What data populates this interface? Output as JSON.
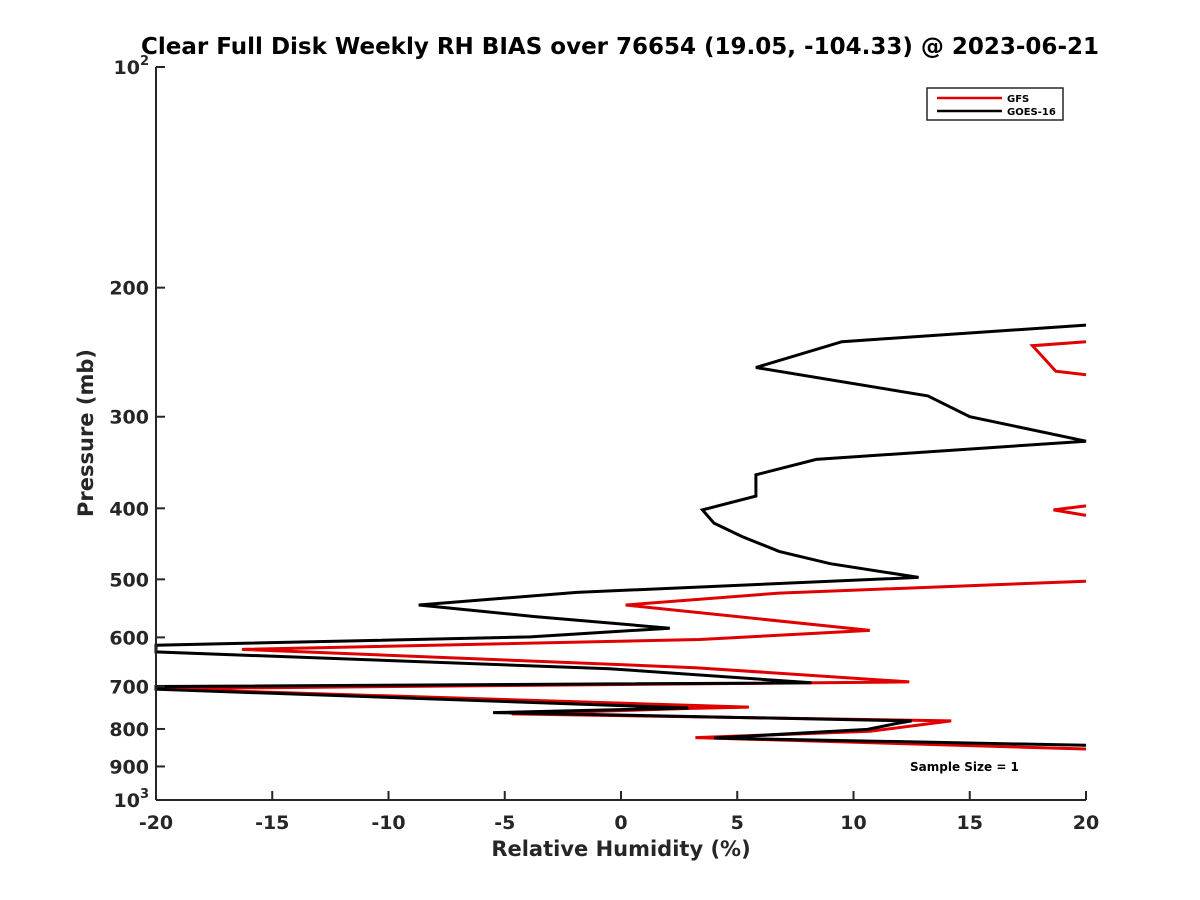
{
  "chart_data": {
    "type": "line",
    "title": "Clear Full Disk Weekly RH BIAS over 76654 (19.05, -104.33) @ 2023-06-21",
    "xlabel": "Relative Humidity (%)",
    "ylabel": "Pressure (mb)",
    "xlim": [
      -20,
      20
    ],
    "ylim": [
      100,
      1000
    ],
    "yscale": "log",
    "yreversed": true,
    "x_ticks": [
      -20,
      -15,
      -10,
      -5,
      0,
      5,
      10,
      15,
      20
    ],
    "x_tick_labels": [
      "-20",
      "-15",
      "-10",
      "-5",
      "0",
      "5",
      "10",
      "15",
      "20"
    ],
    "y_ticks": [
      100,
      200,
      300,
      400,
      500,
      600,
      700,
      800,
      900,
      1000
    ],
    "y_tick_labels": [
      {
        "base": "10",
        "sup": "2"
      },
      {
        "base": "200",
        "sup": ""
      },
      {
        "base": "300",
        "sup": ""
      },
      {
        "base": "400",
        "sup": ""
      },
      {
        "base": "500",
        "sup": ""
      },
      {
        "base": "600",
        "sup": ""
      },
      {
        "base": "700",
        "sup": ""
      },
      {
        "base": "800",
        "sup": ""
      },
      {
        "base": "900",
        "sup": ""
      },
      {
        "base": "10",
        "sup": "3"
      }
    ],
    "legend_position": "top-right",
    "annotation": "Sample Size = 1",
    "series": [
      {
        "name": "GFS",
        "color": "#e00000",
        "points": [
          [
            20,
            237
          ],
          [
            17.7,
            240
          ],
          [
            18.7,
            260
          ],
          [
            20,
            263
          ],
          null,
          [
            20,
            397
          ],
          [
            18.6,
            402
          ],
          [
            20,
            409
          ],
          null,
          [
            20,
            503
          ],
          [
            6.8,
            522
          ],
          [
            0.2,
            542
          ],
          [
            10.7,
            587
          ],
          [
            3.4,
            604
          ],
          [
            -16.3,
            623
          ],
          [
            3.2,
            660
          ],
          [
            12.4,
            690
          ],
          [
            -20,
            705
          ],
          [
            5.5,
            747
          ],
          [
            3.0,
            750
          ],
          [
            -4.7,
            763
          ],
          [
            14.2,
            780
          ],
          [
            10.7,
            806
          ],
          [
            3.2,
            822
          ],
          [
            20,
            852
          ]
        ]
      },
      {
        "name": "GOES-16",
        "color": "#000000",
        "points": [
          [
            20,
            225
          ],
          [
            9.5,
            237
          ],
          [
            5.8,
            257
          ],
          [
            13.2,
            281
          ],
          [
            15.0,
            300
          ],
          [
            20,
            324
          ],
          [
            8.4,
            343
          ],
          [
            5.8,
            360
          ],
          [
            5.8,
            385
          ],
          [
            3.5,
            402
          ],
          [
            4.0,
            419
          ],
          [
            5.2,
            437
          ],
          [
            6.8,
            458
          ],
          [
            9.0,
            476
          ],
          [
            12.8,
            497
          ],
          [
            -1.9,
            521
          ],
          [
            -8.7,
            542
          ],
          [
            -3.7,
            562
          ],
          [
            2.1,
            583
          ],
          [
            -3.9,
            599
          ],
          [
            -20,
            615
          ],
          [
            -20,
            628
          ],
          [
            -0.5,
            662
          ],
          [
            8.2,
            692
          ],
          [
            -20,
            700
          ],
          [
            -20,
            706
          ],
          [
            2.9,
            749
          ],
          [
            -5.5,
            760
          ],
          [
            12.5,
            780
          ],
          [
            11.8,
            787
          ],
          [
            10.6,
            801
          ],
          [
            4.0,
            823
          ],
          [
            20,
            842
          ]
        ]
      }
    ]
  }
}
